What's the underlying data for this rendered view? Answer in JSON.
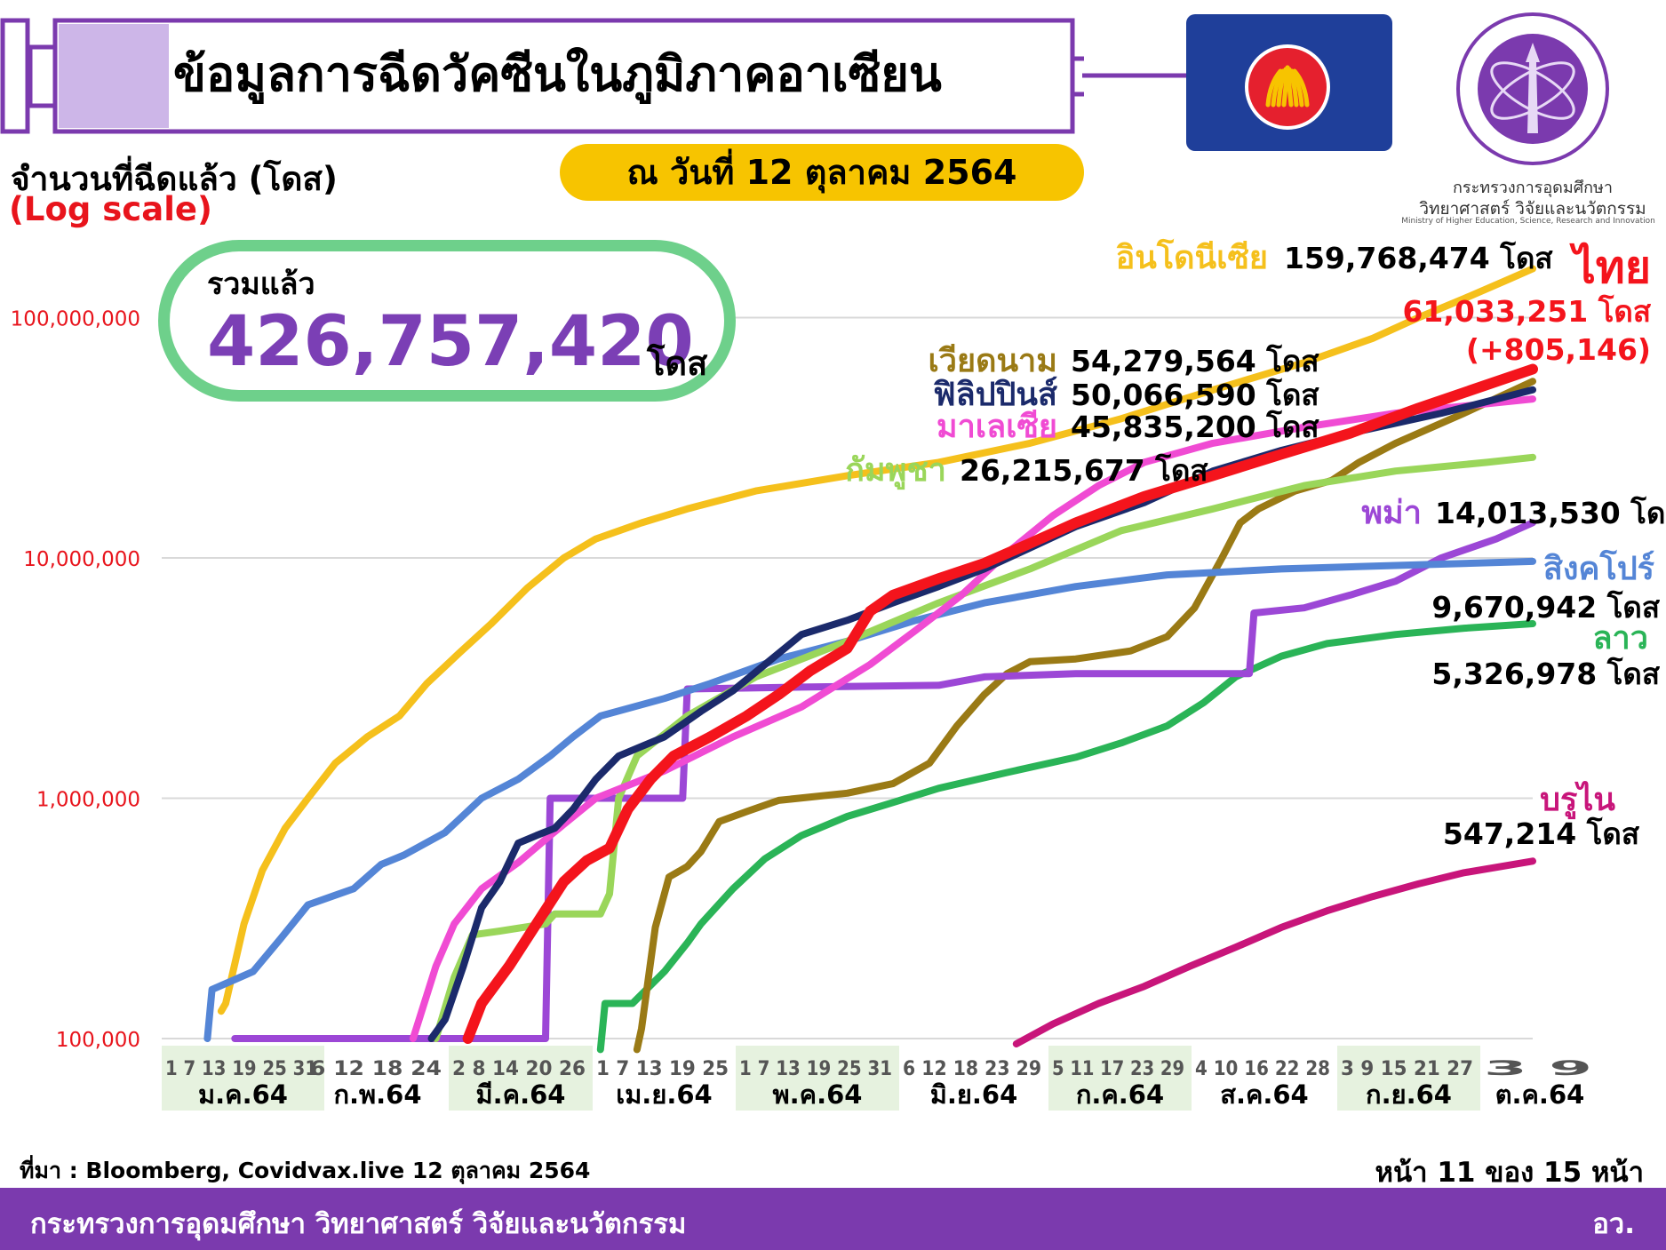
{
  "header": {
    "title": "ข้อมูลการฉีดวัคซีนในภูมิภาคอาเซียน",
    "date": "ณ วันที่ 12 ตุลาคม 2564",
    "ministry_name_line1": "กระทรวงการอุดมศึกษา",
    "ministry_name_line2": "วิทยาศาสตร์ วิจัยและนวัตกรรม",
    "ministry_name_en": "Ministry of Higher Education, Science, Research and Innovation"
  },
  "axis": {
    "ylabel": "จำนวนที่ฉีดแล้ว (โดส)",
    "scale_note": "(Log scale)"
  },
  "total": {
    "label": "รวมแล้ว",
    "value": "426,757,420",
    "unit": "โดส"
  },
  "colors": {
    "indonesia": "#f5c01c",
    "thailand": "#f4141c",
    "vietnam": "#9a7a15",
    "philippines": "#1b2a6b",
    "malaysia": "#f04bd3",
    "cambodia": "#9ad65a",
    "myanmar": "#9c47d6",
    "singapore": "#5485d6",
    "laos": "#2ab457",
    "brunei": "#c8157a",
    "syringe": "#7b3aae",
    "total_border": "#6ed08b"
  },
  "chart_data": {
    "type": "line",
    "yscale": "log",
    "ylim": [
      100000,
      200000000
    ],
    "yticks": [
      "100,000",
      "1,000,000",
      "10,000,000",
      "100,000,000"
    ],
    "ytick_values": [
      100000,
      1000000,
      10000000,
      100000000
    ],
    "months": [
      {
        "label": "ม.ค.64",
        "days": [
          "1",
          "7",
          "13",
          "19",
          "25",
          "31"
        ],
        "highlight": true
      },
      {
        "label": "ก.พ.64",
        "days": [
          "6",
          "12",
          "18",
          "24"
        ],
        "highlight": false
      },
      {
        "label": "มี.ค.64",
        "days": [
          "2",
          "8",
          "14",
          "20",
          "26"
        ],
        "highlight": true
      },
      {
        "label": "เม.ย.64",
        "days": [
          "1",
          "7",
          "13",
          "19",
          "25"
        ],
        "highlight": false
      },
      {
        "label": "พ.ค.64",
        "days": [
          "1",
          "7",
          "13",
          "19",
          "25",
          "31"
        ],
        "highlight": true
      },
      {
        "label": "มิ.ย.64",
        "days": [
          "6",
          "12",
          "18",
          "23",
          "29"
        ],
        "highlight": false
      },
      {
        "label": "ก.ค.64",
        "days": [
          "5",
          "11",
          "17",
          "23",
          "29"
        ],
        "highlight": true
      },
      {
        "label": "ส.ค.64",
        "days": [
          "4",
          "10",
          "16",
          "22",
          "28"
        ],
        "highlight": false
      },
      {
        "label": "ก.ย.64",
        "days": [
          "3",
          "9",
          "15",
          "21",
          "27"
        ],
        "highlight": true
      },
      {
        "label": "ต.ค.64",
        "days": [
          "3",
          "9"
        ],
        "highlight": false
      }
    ],
    "series": [
      {
        "key": "indonesia",
        "name": "อินโดนีเซีย",
        "value_label": "159,768,474 โดส",
        "points": [
          [
            13,
            130000
          ],
          [
            14,
            140000
          ],
          [
            18,
            300000
          ],
          [
            22,
            500000
          ],
          [
            27,
            750000
          ],
          [
            32,
            1000000
          ],
          [
            38,
            1400000
          ],
          [
            45,
            1800000
          ],
          [
            52,
            2200000
          ],
          [
            58,
            3000000
          ],
          [
            65,
            4000000
          ],
          [
            72,
            5300000
          ],
          [
            80,
            7500000
          ],
          [
            88,
            10000000
          ],
          [
            95,
            12000000
          ],
          [
            105,
            14000000
          ],
          [
            115,
            16000000
          ],
          [
            130,
            19000000
          ],
          [
            150,
            22000000
          ],
          [
            170,
            25000000
          ],
          [
            190,
            30000000
          ],
          [
            210,
            38000000
          ],
          [
            230,
            50000000
          ],
          [
            250,
            65000000
          ],
          [
            265,
            82000000
          ],
          [
            275,
            100000000
          ],
          [
            285,
            120000000
          ],
          [
            295,
            145000000
          ],
          [
            300,
            159768474
          ]
        ]
      },
      {
        "key": "brunei",
        "name": "บรูไน",
        "value_label": "547,214 โดส",
        "points": [
          [
            187,
            95000
          ],
          [
            195,
            115000
          ],
          [
            205,
            140000
          ],
          [
            215,
            165000
          ],
          [
            225,
            200000
          ],
          [
            235,
            240000
          ],
          [
            245,
            290000
          ],
          [
            255,
            340000
          ],
          [
            265,
            390000
          ],
          [
            275,
            440000
          ],
          [
            285,
            490000
          ],
          [
            300,
            547214
          ]
        ]
      },
      {
        "key": "laos",
        "name": "ลาว",
        "value_label": "5,326,978 โดส",
        "points": [
          [
            96,
            90000
          ],
          [
            97,
            140000
          ],
          [
            103,
            140000
          ],
          [
            110,
            190000
          ],
          [
            115,
            250000
          ],
          [
            118,
            300000
          ],
          [
            125,
            420000
          ],
          [
            132,
            560000
          ],
          [
            140,
            700000
          ],
          [
            150,
            840000
          ],
          [
            160,
            960000
          ],
          [
            170,
            1100000
          ],
          [
            185,
            1280000
          ],
          [
            200,
            1480000
          ],
          [
            210,
            1700000
          ],
          [
            220,
            2000000
          ],
          [
            228,
            2500000
          ],
          [
            235,
            3200000
          ],
          [
            245,
            3900000
          ],
          [
            255,
            4400000
          ],
          [
            270,
            4800000
          ],
          [
            285,
            5100000
          ],
          [
            300,
            5326978
          ]
        ]
      },
      {
        "key": "vietnam",
        "name": "เวียดนาม",
        "value_label": "54,279,564 โดส",
        "points": [
          [
            104,
            90000
          ],
          [
            105,
            110000
          ],
          [
            108,
            290000
          ],
          [
            111,
            470000
          ],
          [
            115,
            520000
          ],
          [
            118,
            600000
          ],
          [
            122,
            800000
          ],
          [
            128,
            880000
          ],
          [
            135,
            980000
          ],
          [
            150,
            1050000
          ],
          [
            160,
            1150000
          ],
          [
            168,
            1400000
          ],
          [
            174,
            2000000
          ],
          [
            180,
            2700000
          ],
          [
            185,
            3300000
          ],
          [
            190,
            3700000
          ],
          [
            200,
            3800000
          ],
          [
            212,
            4100000
          ],
          [
            220,
            4700000
          ],
          [
            226,
            6200000
          ],
          [
            232,
            10000000
          ],
          [
            236,
            14000000
          ],
          [
            240,
            16000000
          ],
          [
            248,
            19000000
          ],
          [
            256,
            21000000
          ],
          [
            262,
            25000000
          ],
          [
            270,
            30000000
          ],
          [
            285,
            40000000
          ],
          [
            300,
            54279564
          ]
        ]
      },
      {
        "key": "myanmar",
        "name": "พม่า",
        "value_label": "14,013,530 โดส",
        "points": [
          [
            16,
            100000
          ],
          [
            64,
            100000
          ],
          [
            74,
            100000
          ],
          [
            84,
            100000
          ],
          [
            85,
            1000000
          ],
          [
            98,
            1000000
          ],
          [
            114,
            1000000
          ],
          [
            115,
            2850000
          ],
          [
            140,
            2900000
          ],
          [
            170,
            2950000
          ],
          [
            180,
            3200000
          ],
          [
            200,
            3300000
          ],
          [
            230,
            3300000
          ],
          [
            238,
            3300000
          ],
          [
            239,
            5900000
          ],
          [
            250,
            6200000
          ],
          [
            260,
            7000000
          ],
          [
            270,
            8000000
          ],
          [
            280,
            10000000
          ],
          [
            292,
            12000000
          ],
          [
            300,
            14013530
          ]
        ]
      },
      {
        "key": "singapore",
        "name": "สิงคโปร์",
        "value_label": "9,670,942 โดส",
        "points": [
          [
            10,
            100000
          ],
          [
            11,
            160000
          ],
          [
            20,
            190000
          ],
          [
            26,
            260000
          ],
          [
            32,
            360000
          ],
          [
            42,
            420000
          ],
          [
            48,
            530000
          ],
          [
            53,
            580000
          ],
          [
            62,
            720000
          ],
          [
            70,
            1000000
          ],
          [
            78,
            1200000
          ],
          [
            85,
            1500000
          ],
          [
            90,
            1800000
          ],
          [
            96,
            2200000
          ],
          [
            110,
            2600000
          ],
          [
            120,
            3000000
          ],
          [
            135,
            3800000
          ],
          [
            150,
            4500000
          ],
          [
            165,
            5500000
          ],
          [
            180,
            6500000
          ],
          [
            200,
            7600000
          ],
          [
            220,
            8500000
          ],
          [
            245,
            9000000
          ],
          [
            270,
            9300000
          ],
          [
            300,
            9670942
          ]
        ]
      },
      {
        "key": "cambodia",
        "name": "กัมพูชา",
        "value_label": "26,215,677 โดส",
        "points": [
          [
            60,
            100000
          ],
          [
            64,
            180000
          ],
          [
            68,
            270000
          ],
          [
            74,
            280000
          ],
          [
            84,
            300000
          ],
          [
            86,
            330000
          ],
          [
            96,
            330000
          ],
          [
            98,
            400000
          ],
          [
            100,
            1000000
          ],
          [
            104,
            1500000
          ],
          [
            115,
            2200000
          ],
          [
            130,
            3200000
          ],
          [
            150,
            4500000
          ],
          [
            170,
            6500000
          ],
          [
            190,
            9000000
          ],
          [
            210,
            13000000
          ],
          [
            230,
            16000000
          ],
          [
            250,
            20000000
          ],
          [
            270,
            23000000
          ],
          [
            290,
            25000000
          ],
          [
            300,
            26215677
          ]
        ]
      },
      {
        "key": "malaysia",
        "name": "มาเลเซีย",
        "value_label": "45,835,200 โดส",
        "points": [
          [
            55,
            100000
          ],
          [
            60,
            200000
          ],
          [
            64,
            300000
          ],
          [
            70,
            420000
          ],
          [
            78,
            540000
          ],
          [
            85,
            700000
          ],
          [
            95,
            1000000
          ],
          [
            110,
            1300000
          ],
          [
            125,
            1800000
          ],
          [
            140,
            2400000
          ],
          [
            155,
            3600000
          ],
          [
            165,
            5000000
          ],
          [
            175,
            7000000
          ],
          [
            185,
            10500000
          ],
          [
            195,
            15000000
          ],
          [
            205,
            20000000
          ],
          [
            215,
            25000000
          ],
          [
            230,
            30000000
          ],
          [
            250,
            35000000
          ],
          [
            270,
            40000000
          ],
          [
            300,
            45835200
          ]
        ]
      },
      {
        "key": "philippines",
        "name": "ฟิลิปปินส์",
        "value_label": "50,066,590 โดส",
        "points": [
          [
            59,
            100000
          ],
          [
            62,
            120000
          ],
          [
            66,
            200000
          ],
          [
            70,
            350000
          ],
          [
            74,
            450000
          ],
          [
            78,
            650000
          ],
          [
            82,
            700000
          ],
          [
            86,
            750000
          ],
          [
            90,
            900000
          ],
          [
            95,
            1200000
          ],
          [
            100,
            1500000
          ],
          [
            110,
            1800000
          ],
          [
            118,
            2300000
          ],
          [
            125,
            2800000
          ],
          [
            132,
            3600000
          ],
          [
            140,
            4800000
          ],
          [
            150,
            5500000
          ],
          [
            160,
            6500000
          ],
          [
            170,
            7600000
          ],
          [
            180,
            9000000
          ],
          [
            190,
            11000000
          ],
          [
            200,
            13500000
          ],
          [
            215,
            17000000
          ],
          [
            230,
            23000000
          ],
          [
            245,
            28000000
          ],
          [
            260,
            33000000
          ],
          [
            280,
            40000000
          ],
          [
            300,
            50066590
          ]
        ]
      },
      {
        "key": "thailand",
        "name": "ไทย",
        "value_label": "61,033,251 โดส",
        "change_label": "(+805,146)",
        "points": [
          [
            67,
            100000
          ],
          [
            70,
            140000
          ],
          [
            76,
            200000
          ],
          [
            82,
            300000
          ],
          [
            88,
            450000
          ],
          [
            93,
            550000
          ],
          [
            98,
            620000
          ],
          [
            102,
            900000
          ],
          [
            107,
            1200000
          ],
          [
            112,
            1500000
          ],
          [
            120,
            1800000
          ],
          [
            128,
            2200000
          ],
          [
            135,
            2700000
          ],
          [
            142,
            3400000
          ],
          [
            150,
            4200000
          ],
          [
            155,
            6000000
          ],
          [
            160,
            7000000
          ],
          [
            170,
            8200000
          ],
          [
            180,
            9500000
          ],
          [
            190,
            11500000
          ],
          [
            200,
            14000000
          ],
          [
            215,
            18000000
          ],
          [
            230,
            22000000
          ],
          [
            245,
            27000000
          ],
          [
            260,
            33000000
          ],
          [
            275,
            42000000
          ],
          [
            300,
            61033251
          ]
        ]
      }
    ]
  },
  "source": "ที่มา : Bloomberg, Covidvax.live 12 ตุลาคม 2564",
  "page_info": "หน้า 11 ของ 15 หน้า",
  "footer": {
    "ministry": "กระทรวงการอุดมศึกษา วิทยาศาสตร์ วิจัยและนวัตกรรม",
    "abbr": "อว."
  }
}
